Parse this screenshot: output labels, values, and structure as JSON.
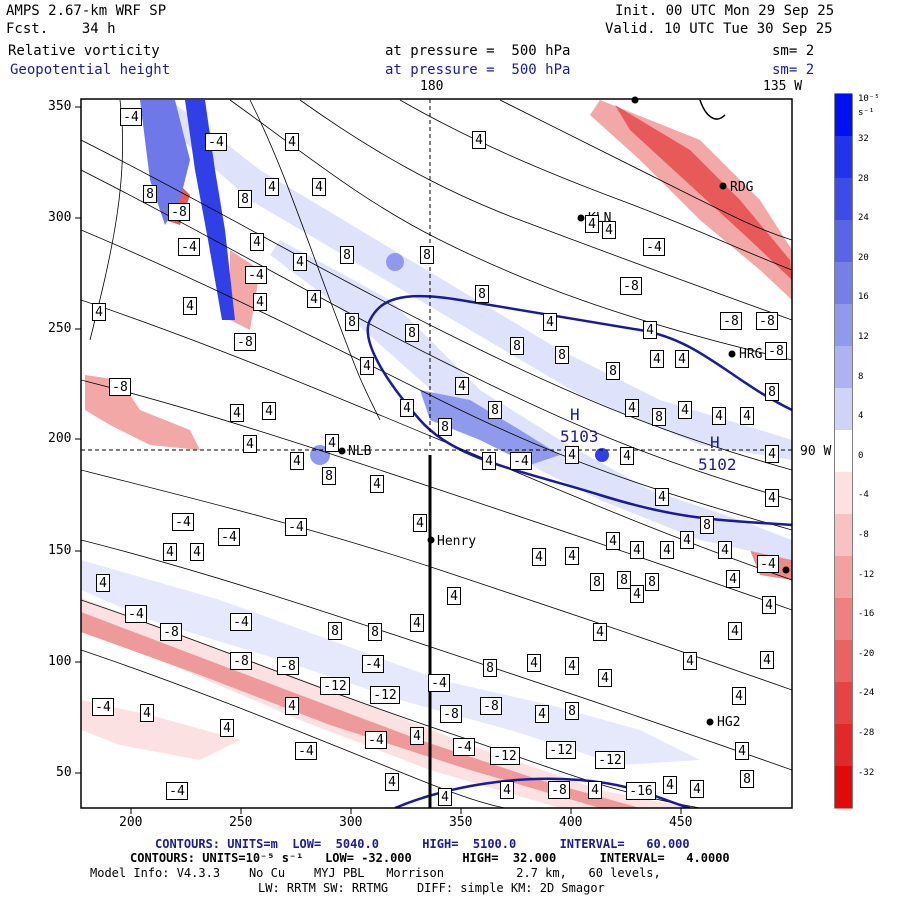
{
  "header": {
    "model": "AMPS 2.67-km WRF SP",
    "forecast": "Fcst.    34 h",
    "init": "Init. 00 UTC Mon 29 Sep 25",
    "valid": "Valid. 10 UTC Tue 30 Sep 25",
    "field1_name": "Relative vorticity",
    "field1_level": "at pressure =  500 hPa",
    "field1_sm": "sm= 2",
    "field2_name": "Geopotential height",
    "field2_level": "at pressure =  500 hPa",
    "field2_sm": "sm= 2"
  },
  "map": {
    "lon_top_label": "180",
    "lon_top_right_label": "135 W",
    "lat_right_label": "90 W",
    "x_ticks": [
      "200",
      "250",
      "300",
      "350",
      "400",
      "450"
    ],
    "y_ticks": [
      "350",
      "300",
      "250",
      "200",
      "150",
      "100",
      "50"
    ],
    "stations": [
      "RDG",
      "KLN",
      "HRG",
      "NLB",
      "Henry",
      "HG2"
    ],
    "high_label": "H",
    "high_values": [
      "5103",
      "5102"
    ],
    "vorticity_labels": {
      "positive_4": "4",
      "positive_8": "8",
      "negative_4": "-4",
      "negative_8": "-8",
      "negative_12": "-12",
      "negative_16": "-16"
    },
    "colors": {
      "positive_strong": "#0a1ee6",
      "positive_mid": "#6e78e8",
      "positive_light": "#dfe2fb",
      "negative_light": "#fbe1e1",
      "negative_mid": "#ef8a8a",
      "negative_strong": "#e01818",
      "height_contour": "#1a1a9c"
    }
  },
  "colorbar": {
    "unit": "10⁻⁵ s⁻¹",
    "ticks": [
      "32",
      "28",
      "24",
      "20",
      "16",
      "12",
      "8",
      "4",
      "0",
      "-4",
      "-8",
      "-12",
      "-16",
      "-20",
      "-24",
      "-28",
      "-32"
    ],
    "colors": [
      "#0010f0",
      "#2233ee",
      "#3d4ce8",
      "#5866e6",
      "#7480e8",
      "#909aec",
      "#acb3f0",
      "#cfd3f7",
      "#ffffff",
      "#fde0e0",
      "#f8c2c2",
      "#f3a0a0",
      "#ee8080",
      "#ea6262",
      "#e64444",
      "#e22828",
      "#e00a0a"
    ]
  },
  "footer": {
    "line1": "CONTOURS: UNITS=m  LOW=  5040.0      HIGH=  5100.0      INTERVAL=   60.000",
    "line2": "CONTOURS: UNITS=10⁻⁵ s⁻¹   LOW= -32.000       HIGH=  32.000      INTERVAL=   4.0000",
    "line3": "Model Info: V4.3.3    No Cu    MYJ PBL   Morrison          2.7 km,   60 levels,",
    "line4": "LW: RRTM SW: RRTMG    DIFF: simple KM: 2D Smagor"
  }
}
